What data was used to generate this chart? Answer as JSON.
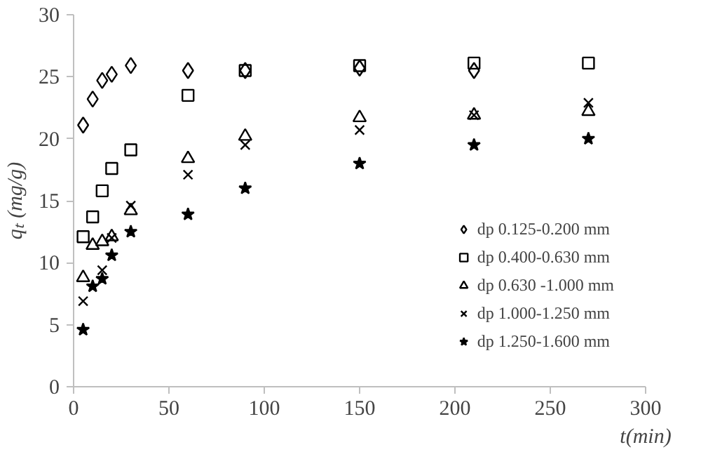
{
  "chart_data": {
    "type": "scatter",
    "xlabel": "t(min)",
    "ylabel": "qₜ (mg/g)",
    "x": [
      5,
      10,
      15,
      20,
      30,
      60,
      90,
      150,
      210,
      270
    ],
    "xlim": [
      0,
      300
    ],
    "xticks": [
      0,
      50,
      100,
      150,
      200,
      250,
      300
    ],
    "ylim": [
      0,
      30
    ],
    "yticks": [
      0,
      5,
      10,
      15,
      20,
      25,
      30
    ],
    "grid": false,
    "legend": "bottom right",
    "series": [
      {
        "name": "dp 0.125-0.200 mm",
        "color": "#000000",
        "marker": "diamond",
        "values": [
          21.1,
          23.2,
          24.7,
          25.2,
          25.9,
          25.5,
          25.5,
          25.7,
          25.5,
          null
        ]
      },
      {
        "name": "dp 0.400-0.630 mm",
        "color": "#000000",
        "marker": "square",
        "values": [
          12.1,
          13.7,
          15.8,
          17.6,
          19.1,
          23.5,
          25.5,
          25.9,
          26.1,
          26.1
        ]
      },
      {
        "name": "dp 0.630 -1.000 mm",
        "color": "#000000",
        "marker": "triangle",
        "values": [
          8.8,
          11.4,
          11.7,
          12.1,
          14.2,
          18.4,
          20.2,
          21.7,
          21.9,
          22.2
        ]
      },
      {
        "name": "dp 1.000-1.250 mm",
        "color": "#000000",
        "marker": "cross",
        "values": [
          6.9,
          null,
          9.4,
          12.0,
          14.6,
          17.1,
          19.5,
          20.7,
          21.9,
          22.9
        ]
      },
      {
        "name": "dp 1.250-1.600 mm",
        "color": "#000000",
        "marker": "star",
        "values": [
          4.6,
          8.1,
          8.7,
          10.6,
          12.5,
          13.9,
          16.0,
          18.0,
          19.5,
          20.0
        ]
      }
    ]
  }
}
